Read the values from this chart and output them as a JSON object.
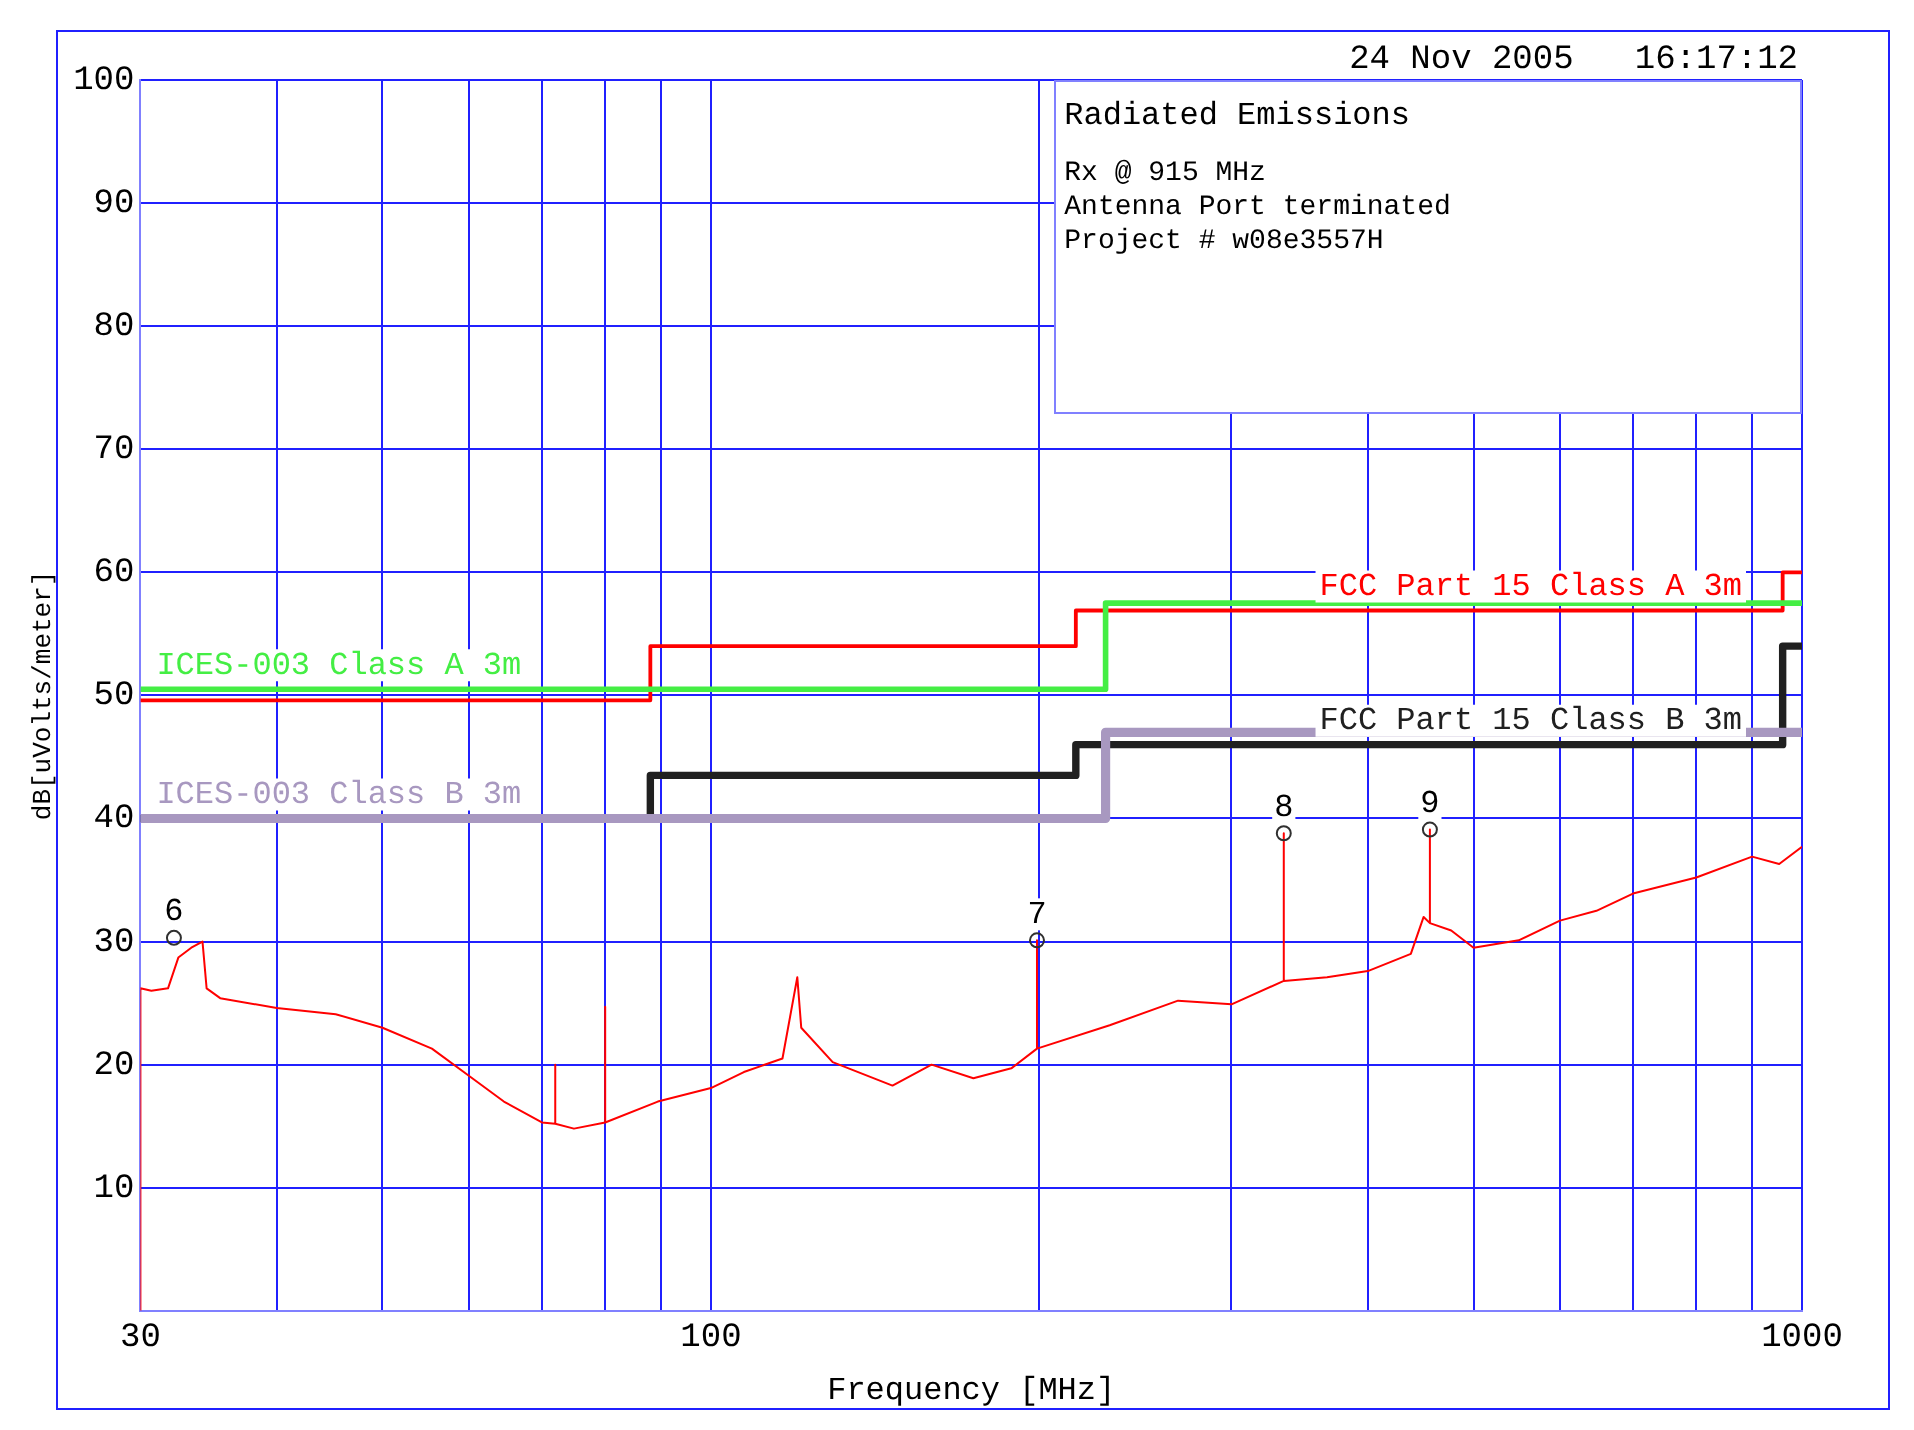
{
  "chart_data": {
    "type": "line",
    "title": "Radiated Emissions",
    "subtitle": "24 Nov 2005   16:17:12",
    "xlabel": "Frequency [MHz]",
    "ylabel": "dB[uVolts/meter]",
    "log": "x",
    "grid": true,
    "legend": false,
    "marker": "none",
    "line_style": "solid",
    "xlim": [
      30,
      1000
    ],
    "xticks": [
      30,
      {
        "value": 40,
        "label": null
      },
      {
        "value": 50,
        "label": null
      },
      {
        "value": 60,
        "label": null
      },
      {
        "value": 70,
        "label": null
      },
      {
        "value": 80,
        "label": null
      },
      {
        "value": 90,
        "label": null
      },
      100,
      {
        "value": 200,
        "label": null
      },
      {
        "value": 300,
        "label": null
      },
      {
        "value": 400,
        "label": null
      },
      {
        "value": 500,
        "label": null
      },
      {
        "value": 600,
        "label": null
      },
      {
        "value": 700,
        "label": null
      },
      {
        "value": 800,
        "label": null
      },
      {
        "value": 900,
        "label": null
      },
      1000
    ],
    "ylim": [
      0,
      100
    ],
    "yticks": [
      {
        "value": 0,
        "label": null
      },
      10,
      20,
      30,
      40,
      50,
      60,
      70,
      80,
      90,
      100
    ],
    "series": [
      {
        "type": "line",
        "color": "#ff0000",
        "x": [
          30,
          30,
          30.7,
          31.8,
          32.5,
          33.4,
          34.2,
          34.5,
          35.5,
          40,
          45.3,
          50,
          55.5,
          60,
          64.6,
          70,
          72,
          72,
          72,
          74.9,
          80,
          80,
          80,
          89.4,
          100,
          107.2,
          116.3,
          120,
          121,
          129.3,
          146.7,
          159.3,
          174,
          188.5,
          199,
          199,
          199,
          232,
          268,
          300,
          335,
          335,
          335,
          367,
          400,
          438,
          450,
          456,
          456,
          456,
          477,
          500,
          550,
          600,
          648,
          700,
          800,
          900,
          953,
          1000
        ],
        "values": [
          0,
          26.2,
          26,
          26.2,
          28.7,
          29.5,
          30,
          26.2,
          25.4,
          24.6,
          24.1,
          23,
          21.3,
          19.1,
          17,
          15.3,
          15.2,
          20,
          15.2,
          14.8,
          15.3,
          24.7,
          15.3,
          17,
          18.1,
          19.4,
          20.5,
          27.1,
          23,
          20.2,
          18.3,
          20,
          18.9,
          19.7,
          21.3,
          30.1,
          21.3,
          23.2,
          25.2,
          24.9,
          26.8,
          38.8,
          26.8,
          27.1,
          27.6,
          29,
          32,
          31.5,
          39.1,
          31.5,
          30.9,
          29.5,
          30.1,
          31.7,
          32.5,
          33.9,
          35.2,
          36.9,
          36.3,
          37.7
        ]
      },
      {
        "type": "step",
        "name": "FCC Part 15 Class A 3m",
        "color": "#ff0000",
        "x": [
          30,
          88,
          216,
          960,
          1000
        ],
        "values": [
          49.6,
          54,
          56.9,
          60,
          60
        ]
      },
      {
        "type": "step",
        "name": "ICES-003 Class A 3m",
        "color": "#44ee44",
        "x": [
          30,
          230,
          1000
        ],
        "values": [
          50.5,
          57.5,
          57.5
        ]
      },
      {
        "type": "step",
        "name": "FCC Part 15 Class B 3m",
        "color": "#202020",
        "x": [
          30,
          88,
          216,
          960,
          1000
        ],
        "values": [
          40,
          43.5,
          46,
          54,
          54
        ]
      },
      {
        "type": "step",
        "name": "ICES-003 Class B 3m",
        "color": "#a898c0",
        "x": [
          30,
          230,
          1000
        ],
        "values": [
          40,
          47,
          47
        ]
      },
      {
        "type": "scatter",
        "marker": "circle",
        "color": "#303030",
        "x": [
          32.2,
          199,
          335,
          456
        ],
        "values": [
          30.3,
          30.1,
          38.8,
          39.1
        ]
      }
    ],
    "annotations": [
      "Rx @ 915 MHz",
      "Antenna Port terminated",
      "Project # w08e3557H",
      {
        "text": "6",
        "x": 32.2,
        "y": 30.3
      },
      {
        "text": "7",
        "x": 199,
        "y": 30.1
      },
      {
        "text": "8",
        "x": 335,
        "y": 38.8
      },
      {
        "text": "9",
        "x": 456,
        "y": 39.1
      }
    ]
  }
}
